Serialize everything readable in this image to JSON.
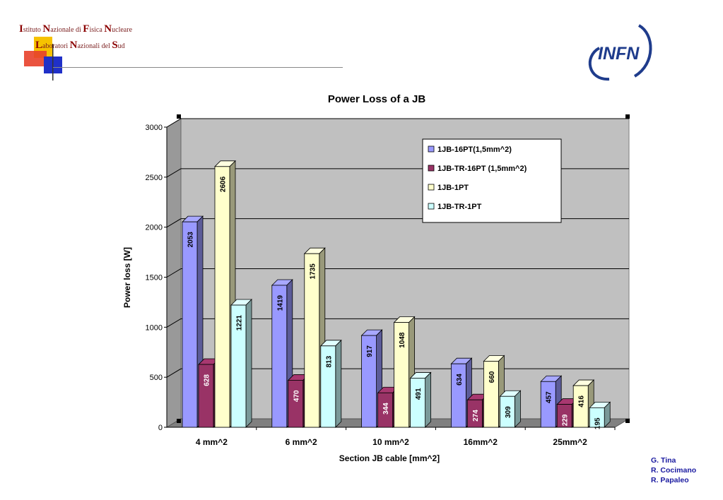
{
  "header": {
    "institute_line1": [
      "I",
      "stituto ",
      "N",
      "azionale di ",
      "F",
      "isica ",
      "N",
      "ucleare"
    ],
    "institute_line2": [
      "L",
      "aboratori ",
      "N",
      "azionali del ",
      "S",
      "ud"
    ],
    "logo_text": "INFN"
  },
  "credits": [
    "G. Tina",
    "R. Cocimano",
    "R. Papaleo"
  ],
  "chart_data": {
    "type": "bar",
    "title": "Power Loss of a  JB",
    "xlabel": "Section JB cable [mm^2]",
    "ylabel": "Power loss [W]",
    "ylim": [
      0,
      3000
    ],
    "yticks": [
      "0",
      "500",
      "1000",
      "1500",
      "2000",
      "2500",
      "3000"
    ],
    "grid": true,
    "legend_position": "top-right",
    "categories": [
      "4 mm^2",
      "6 mm^2",
      "10 mm^2",
      "16mm^2",
      "25mm^2"
    ],
    "series": [
      {
        "name": "1JB-16PT(1,5mm^2)",
        "color": "#9999ff",
        "values": [
          2053,
          1419,
          917,
          634,
          457
        ],
        "labels": [
          "2053",
          "1419",
          "917",
          "634",
          "457"
        ]
      },
      {
        "name": "1JB-TR-16PT (1,5mm^2)",
        "color": "#993366",
        "values": [
          628,
          470,
          344,
          274,
          229
        ],
        "labels": [
          "628",
          "470",
          "344",
          "274",
          "229"
        ]
      },
      {
        "name": "1JB-1PT",
        "color": "#ffffcc",
        "values": [
          2606,
          1735,
          1048,
          660,
          416
        ],
        "labels": [
          "2606",
          "1735",
          "1048",
          "660",
          "416"
        ]
      },
      {
        "name": "1JB-TR-1PT",
        "color": "#ccffff",
        "values": [
          1221,
          813,
          491,
          309,
          195
        ],
        "labels": [
          "1221",
          "813",
          "491",
          "309",
          "195"
        ]
      }
    ]
  }
}
